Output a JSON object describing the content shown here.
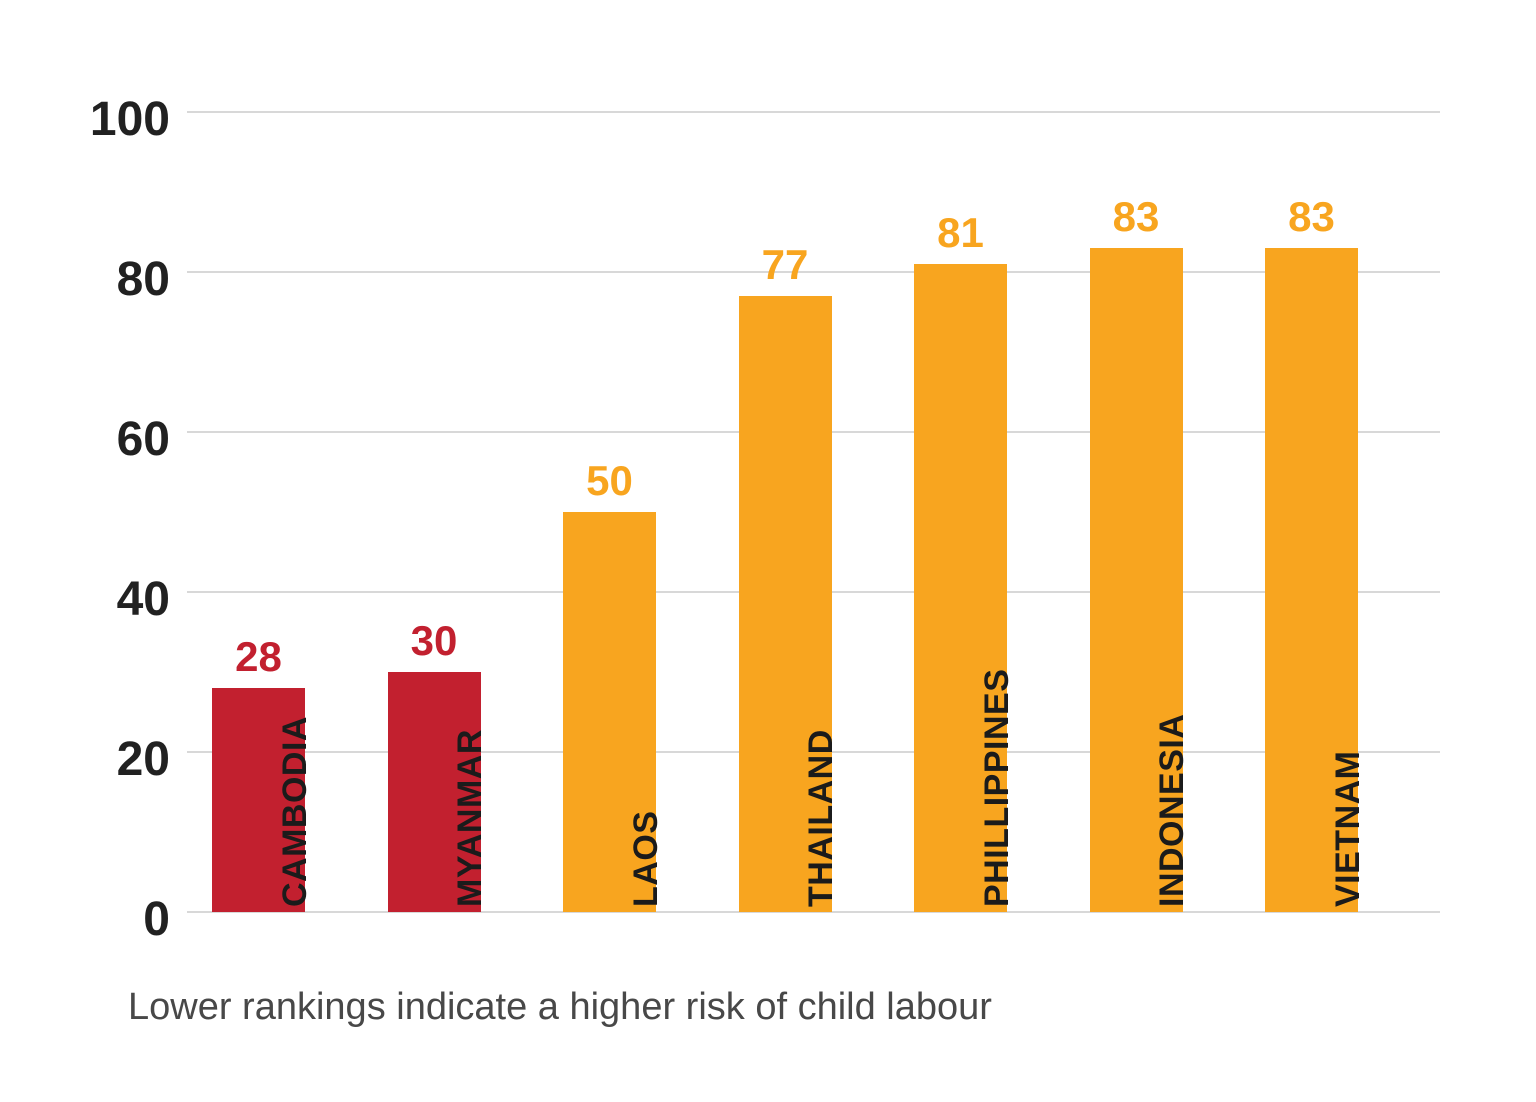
{
  "chart_data": {
    "type": "bar",
    "categories": [
      "CAMBODIA",
      "MYANMAR",
      "LAOS",
      "THAILAND",
      "PHILLIPPINES",
      "INDONESIA",
      "VIETNAM"
    ],
    "values": [
      28,
      30,
      50,
      77,
      81,
      83,
      83
    ],
    "bar_colors": [
      "#c2202f",
      "#c2202f",
      "#f8a51f",
      "#f8a51f",
      "#f8a51f",
      "#f8a51f",
      "#f8a51f"
    ],
    "title": "",
    "xlabel": "",
    "ylabel": "",
    "ylim": [
      0,
      100
    ],
    "yticks": [
      0,
      20,
      40,
      60,
      80,
      100
    ],
    "grid": true,
    "legend": "none",
    "caption": "Lower rankings indicate a higher risk of child labour"
  },
  "colors": {
    "red": "#c2202f",
    "orange": "#f8a51f",
    "gridline": "#d8d8d8",
    "axis_text": "#212121",
    "category_text": "#1b1b1b",
    "caption_text": "#484848",
    "background": "#ffffff"
  }
}
